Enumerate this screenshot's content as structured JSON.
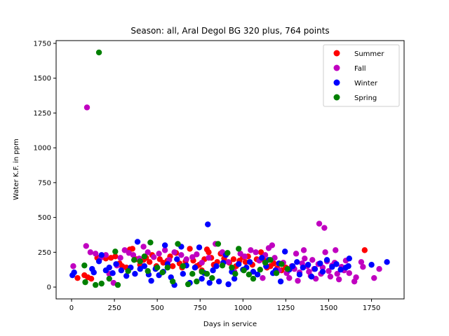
{
  "chart_data": {
    "type": "scatter",
    "title": "Season: all, Aral Degol BG 320 plus, 764 points",
    "xlabel": "Days in service",
    "ylabel": "Water K.F. in ppm",
    "xlim": [
      -90,
      1940
    ],
    "ylim": [
      -85,
      1770
    ],
    "xticks": [
      0,
      250,
      500,
      750,
      1000,
      1250,
      1500,
      1750
    ],
    "yticks": [
      0,
      250,
      500,
      750,
      1000,
      1250,
      1500,
      1750
    ],
    "grid": false,
    "legend_position": "top-right",
    "series": [
      {
        "name": "Summer",
        "color": "#ff0000",
        "points": [
          [
            35,
            65
          ],
          [
            75,
            85
          ],
          [
            95,
            70
          ],
          [
            115,
            60
          ],
          [
            150,
            210
          ],
          [
            170,
            215
          ],
          [
            200,
            205
          ],
          [
            230,
            210
          ],
          [
            255,
            220
          ],
          [
            280,
            170
          ],
          [
            295,
            150
          ],
          [
            320,
            140
          ],
          [
            340,
            270
          ],
          [
            355,
            275
          ],
          [
            380,
            200
          ],
          [
            400,
            160
          ],
          [
            420,
            195
          ],
          [
            435,
            210
          ],
          [
            455,
            180
          ],
          [
            470,
            230
          ],
          [
            495,
            150
          ],
          [
            515,
            200
          ],
          [
            535,
            175
          ],
          [
            560,
            190
          ],
          [
            575,
            220
          ],
          [
            590,
            150
          ],
          [
            610,
            245
          ],
          [
            630,
            170
          ],
          [
            645,
            140
          ],
          [
            665,
            185
          ],
          [
            690,
            275
          ],
          [
            710,
            190
          ],
          [
            730,
            150
          ],
          [
            745,
            160
          ],
          [
            760,
            120
          ],
          [
            775,
            200
          ],
          [
            790,
            270
          ],
          [
            800,
            250
          ],
          [
            815,
            210
          ],
          [
            830,
            160
          ],
          [
            850,
            180
          ],
          [
            870,
            240
          ],
          [
            890,
            205
          ],
          [
            920,
            175
          ],
          [
            945,
            200
          ],
          [
            960,
            150
          ],
          [
            980,
            190
          ],
          [
            1000,
            215
          ],
          [
            1015,
            180
          ],
          [
            1030,
            220
          ],
          [
            1055,
            160
          ],
          [
            1080,
            200
          ],
          [
            1105,
            250
          ],
          [
            1125,
            190
          ],
          [
            1140,
            140
          ],
          [
            1160,
            150
          ],
          [
            1180,
            170
          ],
          [
            1200,
            135
          ],
          [
            1225,
            120
          ],
          [
            1250,
            140
          ],
          [
            1710,
            265
          ]
        ]
      },
      {
        "name": "Fall",
        "color": "#c000c0",
        "points": [
          [
            10,
            150
          ],
          [
            90,
            1290
          ],
          [
            85,
            295
          ],
          [
            110,
            250
          ],
          [
            140,
            240
          ],
          [
            170,
            210
          ],
          [
            200,
            230
          ],
          [
            220,
            95
          ],
          [
            245,
            30
          ],
          [
            265,
            155
          ],
          [
            285,
            210
          ],
          [
            310,
            265
          ],
          [
            335,
            245
          ],
          [
            360,
            230
          ],
          [
            395,
            205
          ],
          [
            420,
            290
          ],
          [
            445,
            250
          ],
          [
            480,
            215
          ],
          [
            510,
            240
          ],
          [
            545,
            265
          ],
          [
            570,
            195
          ],
          [
            600,
            250
          ],
          [
            640,
            230
          ],
          [
            670,
            200
          ],
          [
            705,
            215
          ],
          [
            730,
            235
          ],
          [
            760,
            175
          ],
          [
            800,
            210
          ],
          [
            840,
            310
          ],
          [
            880,
            250
          ],
          [
            915,
            180
          ],
          [
            950,
            110
          ],
          [
            985,
            240
          ],
          [
            1010,
            220
          ],
          [
            1045,
            265
          ],
          [
            1075,
            250
          ],
          [
            1095,
            190
          ],
          [
            1115,
            65
          ],
          [
            1130,
            230
          ],
          [
            1150,
            280
          ],
          [
            1170,
            300
          ],
          [
            1185,
            210
          ],
          [
            1210,
            120
          ],
          [
            1235,
            175
          ],
          [
            1255,
            100
          ],
          [
            1270,
            65
          ],
          [
            1285,
            150
          ],
          [
            1300,
            130
          ],
          [
            1310,
            240
          ],
          [
            1320,
            45
          ],
          [
            1330,
            105
          ],
          [
            1345,
            170
          ],
          [
            1355,
            265
          ],
          [
            1360,
            205
          ],
          [
            1375,
            150
          ],
          [
            1385,
            110
          ],
          [
            1395,
            80
          ],
          [
            1405,
            195
          ],
          [
            1415,
            130
          ],
          [
            1425,
            60
          ],
          [
            1440,
            165
          ],
          [
            1445,
            455
          ],
          [
            1455,
            95
          ],
          [
            1465,
            140
          ],
          [
            1475,
            425
          ],
          [
            1480,
            250
          ],
          [
            1490,
            185
          ],
          [
            1500,
            115
          ],
          [
            1510,
            75
          ],
          [
            1520,
            155
          ],
          [
            1535,
            175
          ],
          [
            1540,
            265
          ],
          [
            1550,
            95
          ],
          [
            1560,
            55
          ],
          [
            1575,
            145
          ],
          [
            1590,
            120
          ],
          [
            1600,
            190
          ],
          [
            1620,
            100
          ],
          [
            1650,
            40
          ],
          [
            1660,
            70
          ],
          [
            1690,
            180
          ],
          [
            1700,
            145
          ],
          [
            1765,
            65
          ],
          [
            1795,
            130
          ]
        ]
      },
      {
        "name": "Winter",
        "color": "#0000ff",
        "points": [
          [
            5,
            85
          ],
          [
            15,
            105
          ],
          [
            120,
            130
          ],
          [
            130,
            105
          ],
          [
            160,
            185
          ],
          [
            175,
            230
          ],
          [
            200,
            120
          ],
          [
            220,
            140
          ],
          [
            240,
            100
          ],
          [
            260,
            165
          ],
          [
            290,
            120
          ],
          [
            320,
            80
          ],
          [
            345,
            140
          ],
          [
            370,
            95
          ],
          [
            385,
            325
          ],
          [
            400,
            130
          ],
          [
            425,
            150
          ],
          [
            450,
            90
          ],
          [
            465,
            45
          ],
          [
            490,
            130
          ],
          [
            510,
            85
          ],
          [
            535,
            110
          ],
          [
            545,
            300
          ],
          [
            560,
            165
          ],
          [
            580,
            70
          ],
          [
            600,
            15
          ],
          [
            615,
            200
          ],
          [
            640,
            290
          ],
          [
            650,
            95
          ],
          [
            670,
            155
          ],
          [
            690,
            30
          ],
          [
            720,
            140
          ],
          [
            745,
            285
          ],
          [
            760,
            60
          ],
          [
            775,
            100
          ],
          [
            795,
            450
          ],
          [
            805,
            30
          ],
          [
            825,
            120
          ],
          [
            845,
            150
          ],
          [
            860,
            40
          ],
          [
            885,
            175
          ],
          [
            900,
            230
          ],
          [
            915,
            20
          ],
          [
            935,
            110
          ],
          [
            950,
            60
          ],
          [
            975,
            165
          ],
          [
            1000,
            125
          ],
          [
            1020,
            140
          ],
          [
            1040,
            180
          ],
          [
            1060,
            110
          ],
          [
            1085,
            90
          ],
          [
            1110,
            210
          ],
          [
            1135,
            150
          ],
          [
            1150,
            195
          ],
          [
            1175,
            100
          ],
          [
            1190,
            120
          ],
          [
            1210,
            170
          ],
          [
            1220,
            40
          ],
          [
            1245,
            255
          ],
          [
            1270,
            125
          ],
          [
            1290,
            150
          ],
          [
            1315,
            180
          ],
          [
            1330,
            90
          ],
          [
            1350,
            140
          ],
          [
            1380,
            160
          ],
          [
            1400,
            75
          ],
          [
            1420,
            130
          ],
          [
            1450,
            170
          ],
          [
            1465,
            110
          ],
          [
            1490,
            195
          ],
          [
            1520,
            145
          ],
          [
            1545,
            165
          ],
          [
            1570,
            125
          ],
          [
            1600,
            140
          ],
          [
            1615,
            150
          ],
          [
            1620,
            205
          ],
          [
            1750,
            160
          ],
          [
            1840,
            180
          ]
        ]
      },
      {
        "name": "Spring",
        "color": "#008000",
        "points": [
          [
            75,
            155
          ],
          [
            80,
            35
          ],
          [
            140,
            15
          ],
          [
            160,
            1685
          ],
          [
            175,
            25
          ],
          [
            220,
            60
          ],
          [
            255,
            255
          ],
          [
            270,
            15
          ],
          [
            330,
            115
          ],
          [
            365,
            195
          ],
          [
            400,
            185
          ],
          [
            425,
            220
          ],
          [
            445,
            115
          ],
          [
            460,
            320
          ],
          [
            500,
            140
          ],
          [
            530,
            105
          ],
          [
            560,
            140
          ],
          [
            590,
            40
          ],
          [
            620,
            310
          ],
          [
            650,
            150
          ],
          [
            680,
            20
          ],
          [
            705,
            95
          ],
          [
            730,
            40
          ],
          [
            760,
            110
          ],
          [
            790,
            95
          ],
          [
            820,
            65
          ],
          [
            855,
            310
          ],
          [
            880,
            155
          ],
          [
            910,
            245
          ],
          [
            935,
            140
          ],
          [
            955,
            95
          ],
          [
            975,
            275
          ],
          [
            1005,
            120
          ],
          [
            1035,
            90
          ],
          [
            1060,
            60
          ],
          [
            1100,
            125
          ],
          [
            1130,
            175
          ],
          [
            1160,
            195
          ],
          [
            1195,
            100
          ],
          [
            1225,
            165
          ],
          [
            1260,
            130
          ]
        ]
      }
    ]
  }
}
